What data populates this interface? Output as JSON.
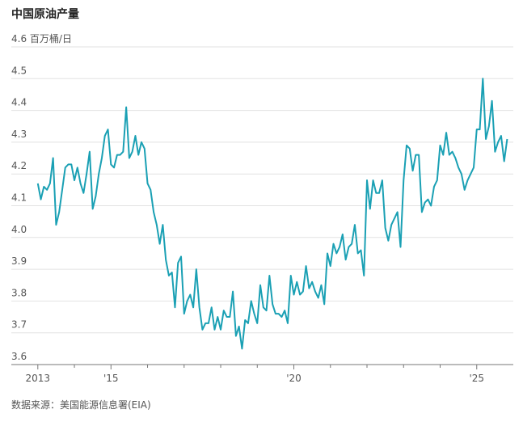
{
  "chart_data": {
    "type": "line",
    "title": "中国原油产量",
    "source": "数据来源：美国能源信息署(EIA)",
    "xlim": [
      2012.85,
      2026.0
    ],
    "xticks": [
      {
        "value": 2013,
        "label": "2013"
      },
      {
        "value": 2015,
        "label": "'15"
      },
      {
        "value": 2020,
        "label": "'20"
      },
      {
        "value": 2025,
        "label": "'25"
      }
    ],
    "xminor_ticks": [
      2014,
      2016,
      2017,
      2018,
      2019,
      2021,
      2022,
      2023,
      2024
    ],
    "ylim": [
      3.6,
      4.6
    ],
    "yticks": [
      3.6,
      3.7,
      3.8,
      3.9,
      {
        "value": 4,
        "label": "4.0"
      },
      4.1,
      4.2,
      4.3,
      4.4,
      4.5,
      {
        "value": 4.6,
        "label": "4.6 百万桶/日"
      }
    ],
    "grid": true,
    "x": [
      2013.0,
      2013.083,
      2013.167,
      2013.25,
      2013.333,
      2013.417,
      2013.5,
      2013.583,
      2013.667,
      2013.75,
      2013.833,
      2013.917,
      2014.0,
      2014.083,
      2014.167,
      2014.25,
      2014.333,
      2014.417,
      2014.5,
      2014.583,
      2014.667,
      2014.75,
      2014.833,
      2014.917,
      2015.0,
      2015.083,
      2015.167,
      2015.25,
      2015.333,
      2015.417,
      2015.5,
      2015.583,
      2015.667,
      2015.75,
      2015.833,
      2015.917,
      2016.0,
      2016.083,
      2016.167,
      2016.25,
      2016.333,
      2016.417,
      2016.5,
      2016.583,
      2016.667,
      2016.75,
      2016.833,
      2016.917,
      2017.0,
      2017.083,
      2017.167,
      2017.25,
      2017.333,
      2017.417,
      2017.5,
      2017.583,
      2017.667,
      2017.75,
      2017.833,
      2017.917,
      2018.0,
      2018.083,
      2018.167,
      2018.25,
      2018.333,
      2018.417,
      2018.5,
      2018.583,
      2018.667,
      2018.75,
      2018.833,
      2018.917,
      2019.0,
      2019.083,
      2019.167,
      2019.25,
      2019.333,
      2019.417,
      2019.5,
      2019.583,
      2019.667,
      2019.75,
      2019.833,
      2019.917,
      2020.0,
      2020.083,
      2020.167,
      2020.25,
      2020.333,
      2020.417,
      2020.5,
      2020.583,
      2020.667,
      2020.75,
      2020.833,
      2020.917,
      2021.0,
      2021.083,
      2021.167,
      2021.25,
      2021.333,
      2021.417,
      2021.5,
      2021.583,
      2021.667,
      2021.75,
      2021.833,
      2021.917,
      2022.0,
      2022.083,
      2022.167,
      2022.25,
      2022.333,
      2022.417,
      2022.5,
      2022.583,
      2022.667,
      2022.75,
      2022.833,
      2022.917,
      2023.0,
      2023.083,
      2023.167,
      2023.25,
      2023.333,
      2023.417,
      2023.5,
      2023.583,
      2023.667,
      2023.75,
      2023.833,
      2023.917,
      2024.0,
      2024.083,
      2024.167,
      2024.25,
      2024.333,
      2024.417,
      2024.5,
      2024.583,
      2024.667,
      2024.75,
      2024.833,
      2024.917,
      2025.0,
      2025.083,
      2025.167,
      2025.25,
      2025.333,
      2025.417,
      2025.5,
      2025.583,
      2025.667,
      2025.75,
      2025.833
    ],
    "series": [
      {
        "color": "#1aa0b4",
        "values": [
          4.17,
          4.12,
          4.16,
          4.15,
          4.17,
          4.25,
          4.04,
          4.08,
          4.15,
          4.22,
          4.23,
          4.23,
          4.18,
          4.22,
          4.17,
          4.14,
          4.2,
          4.27,
          4.09,
          4.13,
          4.2,
          4.25,
          4.32,
          4.34,
          4.23,
          4.22,
          4.26,
          4.26,
          4.27,
          4.41,
          4.25,
          4.27,
          4.32,
          4.26,
          4.3,
          4.28,
          4.17,
          4.15,
          4.08,
          4.04,
          3.98,
          4.04,
          3.93,
          3.88,
          3.89,
          3.78,
          3.92,
          3.94,
          3.76,
          3.8,
          3.82,
          3.78,
          3.9,
          3.78,
          3.71,
          3.73,
          3.73,
          3.78,
          3.71,
          3.75,
          3.71,
          3.77,
          3.75,
          3.75,
          3.83,
          3.69,
          3.72,
          3.65,
          3.74,
          3.73,
          3.8,
          3.76,
          3.73,
          3.85,
          3.78,
          3.77,
          3.88,
          3.79,
          3.76,
          3.76,
          3.75,
          3.77,
          3.73,
          3.88,
          3.82,
          3.86,
          3.82,
          3.83,
          3.91,
          3.84,
          3.86,
          3.83,
          3.81,
          3.85,
          3.79,
          3.95,
          3.91,
          3.98,
          3.95,
          3.97,
          4.01,
          3.93,
          3.97,
          3.98,
          4.04,
          3.95,
          3.96,
          3.88,
          4.18,
          4.09,
          4.18,
          4.14,
          4.14,
          4.18,
          4.03,
          3.99,
          4.04,
          4.06,
          4.08,
          3.97,
          4.18,
          4.29,
          4.28,
          4.21,
          4.26,
          4.26,
          4.08,
          4.11,
          4.12,
          4.1,
          4.16,
          4.18,
          4.29,
          4.26,
          4.33,
          4.26,
          4.27,
          4.25,
          4.22,
          4.2,
          4.15,
          4.18,
          4.2,
          4.22,
          4.34,
          4.34,
          4.5,
          4.31,
          4.35,
          4.43,
          4.27,
          4.3,
          4.32,
          4.24,
          4.31
        ]
      }
    ]
  }
}
